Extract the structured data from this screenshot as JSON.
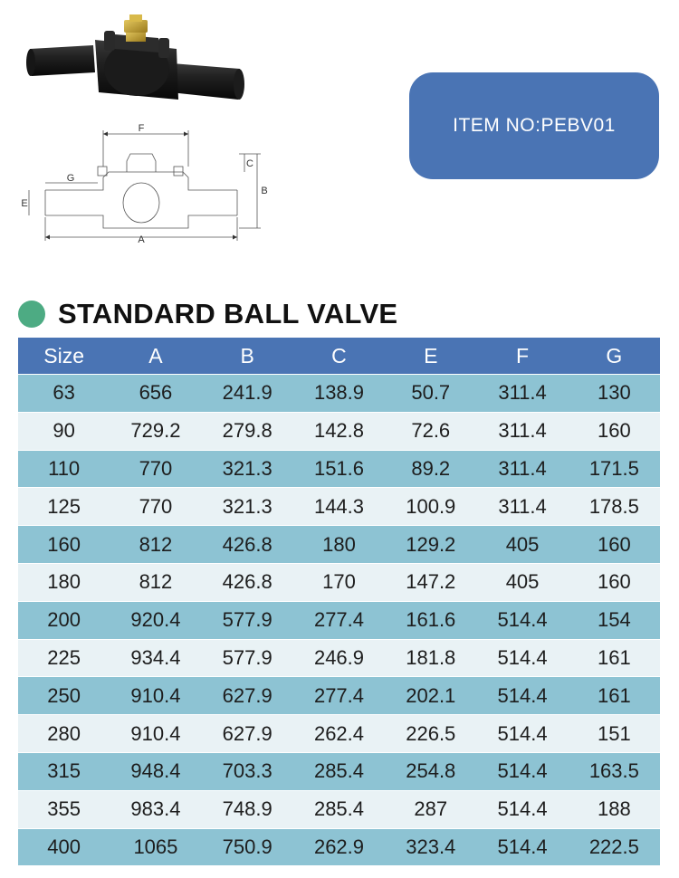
{
  "item": {
    "label": "ITEM NO:PEBV01"
  },
  "section": {
    "title": "STANDARD BALL VALVE"
  },
  "drawing_labels": {
    "a": "A",
    "b": "B",
    "c": "C",
    "e": "E",
    "f": "F",
    "g": "G"
  },
  "colors": {
    "header_blue": "#4a74b4",
    "row_dark": "#8dc3d3",
    "row_light": "#e9f2f5",
    "dot_green": "#4dab83"
  },
  "table": {
    "headers": [
      "Size",
      "A",
      "B",
      "C",
      "E",
      "F",
      "G"
    ],
    "rows": [
      [
        "63",
        "656",
        "241.9",
        "138.9",
        "50.7",
        "311.4",
        "130"
      ],
      [
        "90",
        "729.2",
        "279.8",
        "142.8",
        "72.6",
        "311.4",
        "160"
      ],
      [
        "110",
        "770",
        "321.3",
        "151.6",
        "89.2",
        "311.4",
        "171.5"
      ],
      [
        "125",
        "770",
        "321.3",
        "144.3",
        "100.9",
        "311.4",
        "178.5"
      ],
      [
        "160",
        "812",
        "426.8",
        "180",
        "129.2",
        "405",
        "160"
      ],
      [
        "180",
        "812",
        "426.8",
        "170",
        "147.2",
        "405",
        "160"
      ],
      [
        "200",
        "920.4",
        "577.9",
        "277.4",
        "161.6",
        "514.4",
        "154"
      ],
      [
        "225",
        "934.4",
        "577.9",
        "246.9",
        "181.8",
        "514.4",
        "161"
      ],
      [
        "250",
        "910.4",
        "627.9",
        "277.4",
        "202.1",
        "514.4",
        "161"
      ],
      [
        "280",
        "910.4",
        "627.9",
        "262.4",
        "226.5",
        "514.4",
        "151"
      ],
      [
        "315",
        "948.4",
        "703.3",
        "285.4",
        "254.8",
        "514.4",
        "163.5"
      ],
      [
        "355",
        "983.4",
        "748.9",
        "285.4",
        "287",
        "514.4",
        "188"
      ],
      [
        "400",
        "1065",
        "750.9",
        "262.9",
        "323.4",
        "514.4",
        "222.5"
      ]
    ]
  }
}
